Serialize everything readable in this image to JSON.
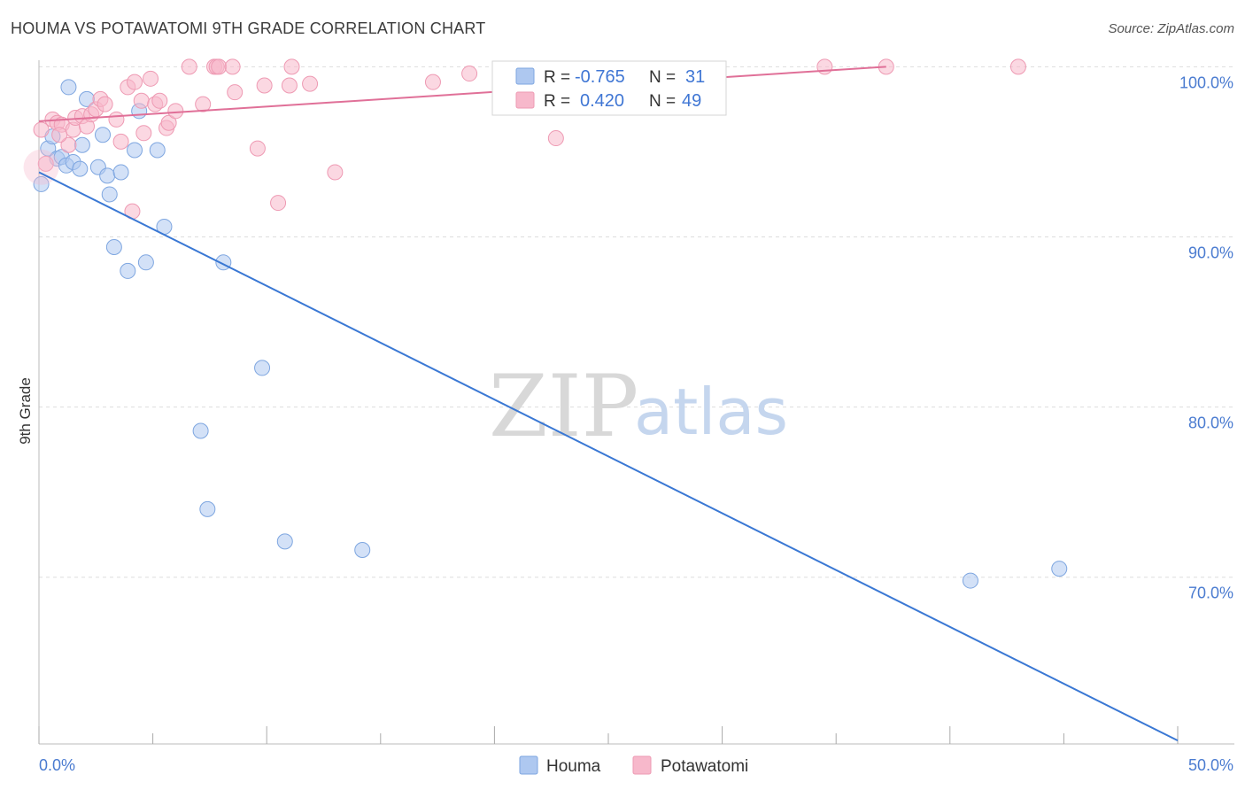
{
  "header": {
    "title": "HOUMA VS POTAWATOMI 9TH GRADE CORRELATION CHART",
    "source": "Source: ZipAtlas.com"
  },
  "watermark": {
    "zip": "ZIP",
    "atlas": "atlas"
  },
  "colors": {
    "houma_fill": "#aec8f0",
    "houma_stroke": "#7ea6e0",
    "houma_line": "#3a78d4",
    "potawatomi_fill": "#f7b8cb",
    "potawatomi_stroke": "#ee9ab3",
    "potawatomi_line": "#e07098",
    "grid": "#dddddd",
    "tick_text": "#4a7bd0"
  },
  "stats": [
    {
      "r_label": "R =",
      "r_value": "-0.765",
      "n_label": "N =",
      "n_value": "31"
    },
    {
      "r_label": "R =",
      "r_value": "0.420",
      "n_label": "N =",
      "n_value": "49"
    }
  ],
  "chart_data": {
    "type": "scatter",
    "title": "HOUMA VS POTAWATOMI 9TH GRADE CORRELATION CHART",
    "xlabel": "",
    "ylabel": "9th Grade",
    "xlim": [
      0,
      50
    ],
    "ylim": [
      60.2,
      100.8
    ],
    "x_tick_labels": [
      "0.0%",
      "50.0%"
    ],
    "y_ticks": [
      70,
      80,
      90,
      100
    ],
    "y_tick_labels": [
      "70.0%",
      "80.0%",
      "90.0%",
      "100.0%"
    ],
    "grid": true,
    "legend_position": "bottom-center",
    "series": [
      {
        "name": "Houma",
        "color": "#aec8f0",
        "r": -0.765,
        "n": 31,
        "trend": {
          "x": [
            0,
            50
          ],
          "y": [
            93.8,
            60.4
          ]
        },
        "points": [
          [
            0.1,
            93.1
          ],
          [
            0.4,
            95.2
          ],
          [
            0.6,
            95.9
          ],
          [
            0.8,
            94.6
          ],
          [
            1.0,
            94.7
          ],
          [
            1.2,
            94.2
          ],
          [
            1.3,
            98.8
          ],
          [
            1.5,
            94.4
          ],
          [
            1.8,
            94.0
          ],
          [
            1.9,
            95.4
          ],
          [
            2.1,
            98.1
          ],
          [
            2.6,
            94.1
          ],
          [
            2.8,
            96.0
          ],
          [
            3.0,
            93.6
          ],
          [
            3.1,
            92.5
          ],
          [
            3.3,
            89.4
          ],
          [
            3.6,
            93.8
          ],
          [
            3.9,
            88.0
          ],
          [
            4.2,
            95.1
          ],
          [
            4.4,
            97.4
          ],
          [
            4.7,
            88.5
          ],
          [
            5.2,
            95.1
          ],
          [
            5.5,
            90.6
          ],
          [
            7.1,
            78.6
          ],
          [
            7.4,
            74.0
          ],
          [
            8.1,
            88.5
          ],
          [
            9.8,
            82.3
          ],
          [
            10.8,
            72.1
          ],
          [
            14.2,
            71.6
          ],
          [
            40.9,
            69.8
          ],
          [
            44.8,
            70.5
          ]
        ]
      },
      {
        "name": "Potawatomi",
        "color": "#f7b8cb",
        "r": 0.42,
        "n": 49,
        "trend": {
          "x": [
            0,
            37.2
          ],
          "y": [
            96.8,
            100.0
          ]
        },
        "points": [
          [
            0.1,
            96.3
          ],
          [
            0.3,
            94.3
          ],
          [
            0.6,
            96.9
          ],
          [
            0.8,
            96.7
          ],
          [
            1.0,
            96.6
          ],
          [
            1.3,
            95.4
          ],
          [
            1.5,
            96.3
          ],
          [
            1.6,
            97.0
          ],
          [
            1.9,
            97.1
          ],
          [
            2.1,
            96.5
          ],
          [
            2.3,
            97.2
          ],
          [
            2.5,
            97.5
          ],
          [
            2.7,
            98.1
          ],
          [
            2.9,
            97.8
          ],
          [
            3.4,
            96.9
          ],
          [
            3.6,
            95.6
          ],
          [
            3.9,
            98.8
          ],
          [
            4.1,
            91.5
          ],
          [
            4.2,
            99.1
          ],
          [
            4.5,
            98.0
          ],
          [
            4.6,
            96.1
          ],
          [
            4.9,
            99.3
          ],
          [
            5.1,
            97.8
          ],
          [
            5.3,
            98.0
          ],
          [
            5.6,
            96.4
          ],
          [
            5.7,
            96.7
          ],
          [
            6.0,
            97.4
          ],
          [
            6.6,
            100.0
          ],
          [
            7.2,
            97.8
          ],
          [
            7.7,
            100.0
          ],
          [
            7.8,
            100.0
          ],
          [
            7.9,
            100.0
          ],
          [
            8.5,
            100.0
          ],
          [
            8.6,
            98.5
          ],
          [
            9.6,
            95.2
          ],
          [
            9.9,
            98.9
          ],
          [
            10.5,
            92.0
          ],
          [
            11.0,
            98.9
          ],
          [
            11.1,
            100.0
          ],
          [
            11.9,
            99.0
          ],
          [
            13.0,
            93.8
          ],
          [
            17.3,
            99.1
          ],
          [
            18.9,
            99.6
          ],
          [
            22.7,
            95.8
          ],
          [
            24.2,
            99.8
          ],
          [
            34.5,
            100.0
          ],
          [
            37.2,
            100.0
          ],
          [
            43.0,
            100.0
          ],
          [
            0.9,
            96.0
          ]
        ]
      }
    ]
  }
}
